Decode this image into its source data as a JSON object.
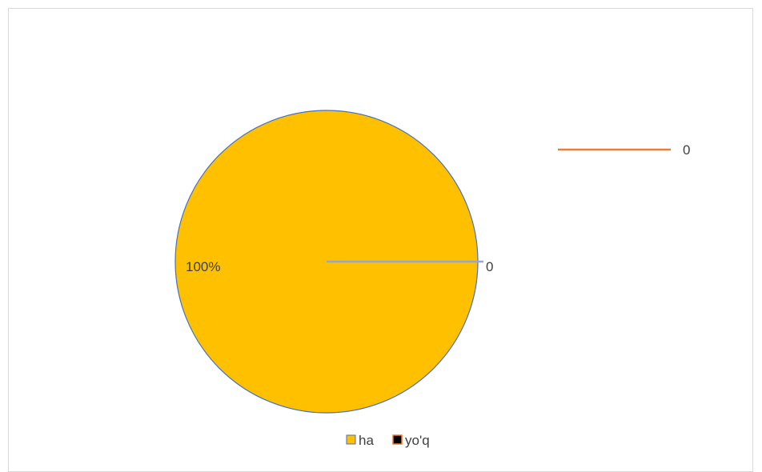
{
  "chart_data": {
    "type": "pie",
    "categories": [
      "ha",
      "yo'q"
    ],
    "values": [
      100,
      0
    ],
    "data_labels": [
      "100%",
      "0"
    ],
    "legend": {
      "position": "bottom",
      "entries": [
        "ha",
        "yo'q"
      ]
    },
    "extra_legend_entry": {
      "label": "0",
      "color": "#ED7D31"
    },
    "colors": [
      "#FFC000",
      "#000000"
    ],
    "slice_border_color": "#4472C4",
    "leader_line_color": "#8FA8D8"
  }
}
